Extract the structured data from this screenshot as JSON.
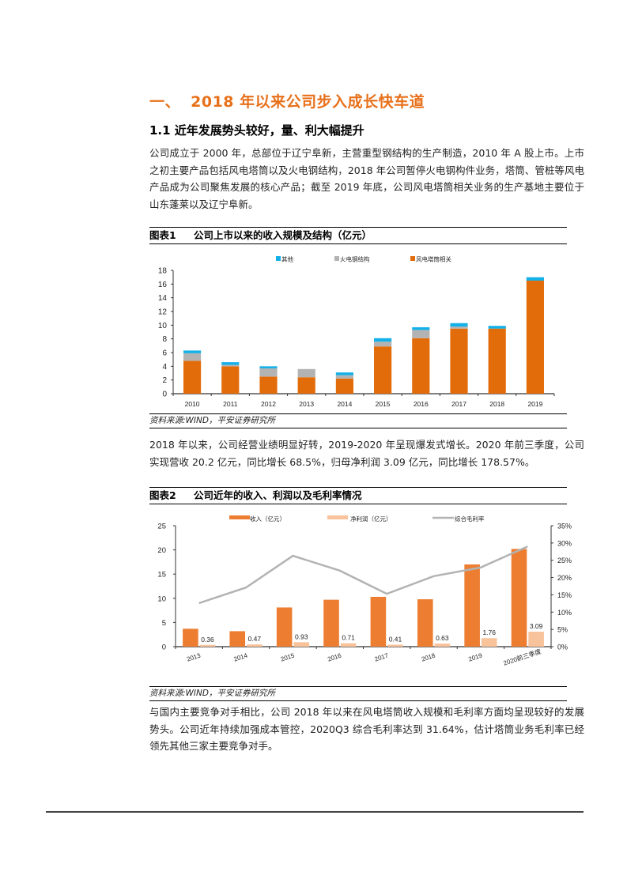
{
  "section": {
    "number": "一、",
    "title": "2018 年以来公司步入成长快车道"
  },
  "subsection": {
    "title": "1.1  近年发展势头较好，量、利大幅提升"
  },
  "paragraphs": [
    "公司成立于 2000 年，总部位于辽宁阜新，主营重型钢结构的生产制造，2010 年 A 股上市。上市之初主要产品包括风电塔筒以及火电钢结构，2018 年公司暂停火电钢构件业务，塔筒、管桩等风电产品成为公司聚焦发展的核心产品；截至 2019 年底，公司风电塔筒相关业务的生产基地主要位于山东蓬莱以及辽宁阜新。",
    "2018 年以来，公司经营业绩明显好转，2019-2020 年呈现爆发式增长。2020 年前三季度，公司实现营收 20.2 亿元，同比增长 68.5%，归母净利润 3.09 亿元，同比增长 178.57%。",
    "与国内主要竞争对手相比，公司 2018 年以来在风电塔筒收入规模和毛利率方面均呈现较好的发展势头。公司近年持续加强成本管控，2020Q3 综合毛利率达到 31.64%，估计塔筒业务毛利率已经领先其他三家主要竞争对手。"
  ],
  "figures": [
    {
      "label": "图表1",
      "title": "公司上市以来的收入规模及结构（亿元）",
      "source": "资料来源:WIND，平安证券研究所"
    },
    {
      "label": "图表2",
      "title": "公司近年的收入、利润以及毛利率情况",
      "source": "资料来源:WIND，平安证券研究所"
    }
  ],
  "chart_data": [
    {
      "type": "bar",
      "stacked": true,
      "title": "公司上市以来的收入规模及结构（亿元）",
      "categories": [
        "2010",
        "2011",
        "2012",
        "2013",
        "2014",
        "2015",
        "2016",
        "2017",
        "2018",
        "2019"
      ],
      "series": [
        {
          "name": "风电塔筒相关",
          "color": "#e36c0a",
          "values": [
            4.8,
            4.0,
            2.5,
            2.4,
            2.2,
            6.9,
            8.1,
            9.5,
            9.5,
            16.5
          ]
        },
        {
          "name": "火电钢结构",
          "color": "#b3b3b3",
          "values": [
            1.1,
            0.2,
            1.2,
            1.2,
            0.5,
            0.7,
            1.2,
            0.3,
            0.0,
            0.0
          ]
        },
        {
          "name": "其他",
          "color": "#14b0e8",
          "values": [
            0.4,
            0.4,
            0.3,
            0.0,
            0.4,
            0.5,
            0.4,
            0.5,
            0.4,
            0.5
          ]
        }
      ],
      "legend_order": [
        "其他",
        "火电钢结构",
        "风电塔筒相关"
      ],
      "yticks": [
        0,
        2,
        4,
        6,
        8,
        10,
        12,
        14,
        16,
        18
      ],
      "ylim": [
        0,
        18
      ],
      "xlabel": "",
      "ylabel": "",
      "grid": false,
      "legend_position": "top"
    },
    {
      "type": "bar+line",
      "title": "公司近年的收入、利润以及毛利率情况",
      "categories": [
        "2013",
        "2014",
        "2015",
        "2016",
        "2017",
        "2018",
        "2019",
        "2020前三季度"
      ],
      "series": [
        {
          "name": "收入（亿元）",
          "type": "bar",
          "axis": "left",
          "color": "#ed7d31",
          "values": [
            3.7,
            3.2,
            8.1,
            9.7,
            10.3,
            9.8,
            17.0,
            20.2
          ]
        },
        {
          "name": "净利润（亿元）",
          "type": "bar",
          "axis": "left",
          "color": "#f8c29a",
          "values": [
            0.36,
            0.47,
            0.93,
            0.71,
            0.41,
            0.63,
            1.76,
            3.09
          ],
          "labels": [
            "0.36",
            "0.47",
            "0.93",
            "0.71",
            "0.41",
            "0.63",
            "1.76",
            "3.09"
          ]
        },
        {
          "name": "综合毛利率",
          "type": "line",
          "axis": "right",
          "color": "#b3b3b3",
          "values": [
            12.6,
            17.1,
            26.3,
            22.0,
            15.3,
            20.4,
            22.9,
            29.0
          ]
        }
      ],
      "left_yticks": [
        0,
        5,
        10,
        15,
        20,
        25
      ],
      "left_ylim": [
        0,
        25
      ],
      "right_yticks": [
        "0%",
        "5%",
        "10%",
        "15%",
        "20%",
        "25%",
        "30%",
        "35%"
      ],
      "right_ylim": [
        0,
        35
      ],
      "grid": false,
      "legend_position": "top"
    }
  ]
}
